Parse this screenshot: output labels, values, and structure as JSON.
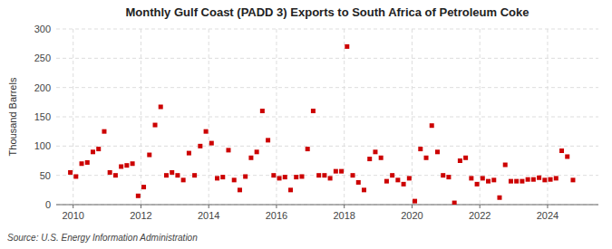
{
  "chart_data": {
    "type": "scatter",
    "title": "Monthly Gulf Coast (PADD 3) Exports to South Africa of Petroleum Coke",
    "y_label": "Thousand Barrels",
    "source": "Source: U.S. Energy Information Administration",
    "color": "#cc0000",
    "marker": "square",
    "grid": true,
    "xlim": [
      2009.5,
      2025.5
    ],
    "xticks": [
      2010,
      2012,
      2014,
      2016,
      2018,
      2020,
      2022,
      2024
    ],
    "ylim": [
      0,
      300
    ],
    "yticks": [
      0,
      50,
      100,
      150,
      200,
      250,
      300
    ],
    "x": [
      2009.917,
      2010.083,
      2010.25,
      2010.417,
      2010.583,
      2010.75,
      2010.917,
      2011.083,
      2011.25,
      2011.417,
      2011.583,
      2011.75,
      2011.917,
      2012.083,
      2012.25,
      2012.417,
      2012.583,
      2012.75,
      2012.917,
      2013.083,
      2013.25,
      2013.417,
      2013.583,
      2013.75,
      2013.917,
      2014.083,
      2014.25,
      2014.417,
      2014.583,
      2014.75,
      2014.917,
      2015.083,
      2015.25,
      2015.417,
      2015.583,
      2015.75,
      2015.917,
      2016.083,
      2016.25,
      2016.417,
      2016.583,
      2016.75,
      2016.917,
      2017.083,
      2017.25,
      2017.417,
      2017.583,
      2017.75,
      2017.917,
      2018.083,
      2018.25,
      2018.417,
      2018.583,
      2018.75,
      2018.917,
      2019.083,
      2019.25,
      2019.417,
      2019.583,
      2019.75,
      2019.917,
      2020.083,
      2020.25,
      2020.417,
      2020.583,
      2020.75,
      2020.917,
      2021.083,
      2021.25,
      2021.417,
      2021.583,
      2021.75,
      2021.917,
      2022.083,
      2022.25,
      2022.417,
      2022.583,
      2022.75,
      2022.917,
      2023.083,
      2023.25,
      2023.417,
      2023.583,
      2023.75,
      2023.917,
      2024.083,
      2024.25,
      2024.417,
      2024.583,
      2024.75
    ],
    "values": [
      55,
      48,
      70,
      72,
      90,
      95,
      125,
      55,
      50,
      65,
      67,
      70,
      15,
      30,
      85,
      136,
      167,
      50,
      55,
      50,
      42,
      88,
      50,
      100,
      125,
      105,
      45,
      47,
      93,
      42,
      25,
      48,
      80,
      90,
      160,
      110,
      50,
      45,
      47,
      25,
      47,
      48,
      95,
      160,
      50,
      50,
      45,
      57,
      57,
      270,
      50,
      38,
      25,
      78,
      90,
      80,
      40,
      50,
      42,
      35,
      45,
      6,
      95,
      80,
      135,
      90,
      50,
      47,
      3,
      75,
      80,
      45,
      35,
      45,
      40,
      42,
      12,
      68,
      40,
      40,
      40,
      43,
      43,
      46,
      42,
      43,
      45,
      92,
      82,
      42
    ]
  }
}
